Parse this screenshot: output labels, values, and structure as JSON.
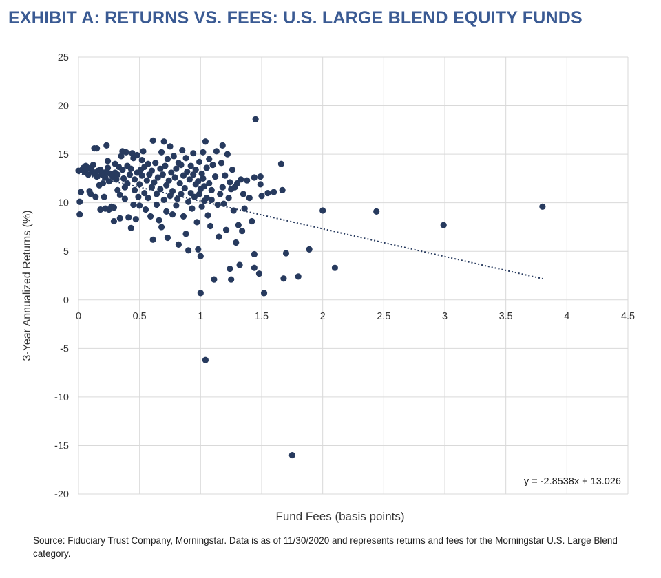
{
  "title": "EXHIBIT A: RETURNS VS. FEES:  U.S. LARGE BLEND EQUITY FUNDS",
  "source": "Source: Fiduciary Trust Company, Morningstar.  Data is as of 11/30/2020 and represents returns and fees for the Morningstar U.S. Large Blend category.",
  "colors": {
    "point": "#273a5e",
    "grid": "#d9d9d9",
    "trend": "#273a5e",
    "title": "#3a5a93"
  },
  "chart_data": {
    "type": "scatter",
    "title": "",
    "xlabel": "Fund Fees (basis points)",
    "ylabel": "3-Year Annualized Returns (%)",
    "xlim": [
      0,
      4.5
    ],
    "ylim": [
      -20,
      25
    ],
    "x_ticks": [
      0,
      0.5,
      1,
      1.5,
      2,
      2.5,
      3,
      3.5,
      4,
      4.5
    ],
    "x_tick_labels": [
      "0",
      "0.5",
      "1",
      "1.5",
      "2",
      "2.5",
      "3",
      "3.5",
      "4",
      "4.5"
    ],
    "y_ticks": [
      25,
      20,
      15,
      10,
      5,
      0,
      -5,
      -10,
      -15,
      -20
    ],
    "y_tick_labels": [
      "25",
      "20",
      "15",
      "10",
      "5",
      "0",
      "-5",
      "-10",
      "-15",
      "-20"
    ],
    "grid": true,
    "trendline": {
      "slope": -2.8538,
      "intercept": 13.026,
      "x_range": [
        0,
        3.8
      ],
      "style": "dotted",
      "equation_label": "y = -2.8538x + 13.026"
    },
    "points": [
      [
        0.0,
        13.3
      ],
      [
        0.01,
        8.8
      ],
      [
        0.01,
        10.1
      ],
      [
        0.02,
        11.1
      ],
      [
        0.03,
        13.4
      ],
      [
        0.04,
        13.6
      ],
      [
        0.05,
        13.2
      ],
      [
        0.06,
        13.8
      ],
      [
        0.07,
        13.5
      ],
      [
        0.08,
        12.9
      ],
      [
        0.09,
        11.2
      ],
      [
        0.1,
        13.6
      ],
      [
        0.1,
        10.9
      ],
      [
        0.11,
        13.3
      ],
      [
        0.12,
        13.9
      ],
      [
        0.13,
        15.6
      ],
      [
        0.13,
        13.0
      ],
      [
        0.14,
        10.6
      ],
      [
        0.15,
        15.6
      ],
      [
        0.15,
        12.7
      ],
      [
        0.16,
        13.3
      ],
      [
        0.17,
        11.8
      ],
      [
        0.18,
        13.4
      ],
      [
        0.18,
        9.3
      ],
      [
        0.19,
        12.9
      ],
      [
        0.2,
        13.1
      ],
      [
        0.2,
        12.0
      ],
      [
        0.21,
        10.6
      ],
      [
        0.22,
        9.4
      ],
      [
        0.22,
        12.6
      ],
      [
        0.23,
        13.2
      ],
      [
        0.23,
        15.9
      ],
      [
        0.24,
        14.3
      ],
      [
        0.24,
        13.6
      ],
      [
        0.25,
        12.2
      ],
      [
        0.25,
        9.3
      ],
      [
        0.26,
        13.0
      ],
      [
        0.27,
        9.6
      ],
      [
        0.28,
        12.7
      ],
      [
        0.29,
        8.1
      ],
      [
        0.29,
        9.5
      ],
      [
        0.3,
        13.1
      ],
      [
        0.3,
        14.0
      ],
      [
        0.31,
        12.4
      ],
      [
        0.32,
        11.3
      ],
      [
        0.32,
        12.9
      ],
      [
        0.33,
        13.7
      ],
      [
        0.34,
        10.8
      ],
      [
        0.34,
        8.4
      ],
      [
        0.35,
        14.8
      ],
      [
        0.36,
        15.3
      ],
      [
        0.36,
        13.4
      ],
      [
        0.37,
        12.5
      ],
      [
        0.38,
        11.6
      ],
      [
        0.38,
        10.4
      ],
      [
        0.39,
        15.2
      ],
      [
        0.4,
        12.0
      ],
      [
        0.4,
        13.8
      ],
      [
        0.41,
        8.5
      ],
      [
        0.42,
        12.9
      ],
      [
        0.43,
        13.5
      ],
      [
        0.43,
        7.4
      ],
      [
        0.44,
        15.1
      ],
      [
        0.45,
        14.6
      ],
      [
        0.45,
        9.8
      ],
      [
        0.46,
        11.3
      ],
      [
        0.46,
        12.4
      ],
      [
        0.47,
        8.3
      ],
      [
        0.48,
        14.9
      ],
      [
        0.48,
        13.1
      ],
      [
        0.49,
        10.6
      ],
      [
        0.5,
        11.9
      ],
      [
        0.5,
        9.7
      ],
      [
        0.51,
        13.4
      ],
      [
        0.52,
        12.8
      ],
      [
        0.52,
        14.4
      ],
      [
        0.53,
        15.3
      ],
      [
        0.54,
        11.0
      ],
      [
        0.54,
        13.7
      ],
      [
        0.55,
        9.3
      ],
      [
        0.56,
        12.3
      ],
      [
        0.57,
        14.0
      ],
      [
        0.57,
        10.5
      ],
      [
        0.58,
        12.9
      ],
      [
        0.59,
        8.6
      ],
      [
        0.6,
        11.6
      ],
      [
        0.6,
        13.3
      ],
      [
        0.61,
        6.2
      ],
      [
        0.61,
        16.4
      ],
      [
        0.62,
        12.1
      ],
      [
        0.63,
        14.1
      ],
      [
        0.64,
        10.9
      ],
      [
        0.64,
        9.8
      ],
      [
        0.65,
        12.6
      ],
      [
        0.66,
        8.2
      ],
      [
        0.67,
        13.5
      ],
      [
        0.67,
        11.4
      ],
      [
        0.68,
        7.5
      ],
      [
        0.68,
        15.2
      ],
      [
        0.69,
        12.9
      ],
      [
        0.7,
        10.3
      ],
      [
        0.7,
        16.3
      ],
      [
        0.71,
        13.8
      ],
      [
        0.72,
        9.1
      ],
      [
        0.72,
        11.8
      ],
      [
        0.73,
        6.4
      ],
      [
        0.73,
        14.5
      ],
      [
        0.74,
        12.3
      ],
      [
        0.75,
        15.8
      ],
      [
        0.75,
        10.7
      ],
      [
        0.76,
        13.1
      ],
      [
        0.77,
        8.8
      ],
      [
        0.77,
        11.2
      ],
      [
        0.78,
        14.8
      ],
      [
        0.79,
        12.6
      ],
      [
        0.8,
        9.7
      ],
      [
        0.8,
        13.5
      ],
      [
        0.81,
        10.4
      ],
      [
        0.82,
        14.1
      ],
      [
        0.82,
        5.7
      ],
      [
        0.83,
        12.0
      ],
      [
        0.84,
        13.9
      ],
      [
        0.84,
        10.9
      ],
      [
        0.85,
        15.4
      ],
      [
        0.86,
        8.6
      ],
      [
        0.86,
        12.8
      ],
      [
        0.87,
        11.5
      ],
      [
        0.88,
        6.8
      ],
      [
        0.88,
        14.6
      ],
      [
        0.89,
        13.2
      ],
      [
        0.9,
        10.1
      ],
      [
        0.9,
        5.1
      ],
      [
        0.91,
        12.4
      ],
      [
        0.92,
        11.0
      ],
      [
        0.92,
        13.8
      ],
      [
        0.93,
        9.4
      ],
      [
        0.94,
        12.9
      ],
      [
        0.94,
        15.1
      ],
      [
        0.95,
        10.6
      ],
      [
        0.96,
        11.9
      ],
      [
        0.96,
        13.4
      ],
      [
        0.97,
        8.0
      ],
      [
        0.98,
        5.2
      ],
      [
        0.98,
        12.2
      ],
      [
        0.99,
        10.9
      ],
      [
        0.99,
        14.2
      ],
      [
        1.0,
        4.5
      ],
      [
        1.0,
        11.4
      ],
      [
        1.0,
        0.7
      ],
      [
        1.01,
        13.0
      ],
      [
        1.01,
        9.6
      ],
      [
        1.02,
        12.5
      ],
      [
        1.02,
        15.2
      ],
      [
        1.03,
        10.2
      ],
      [
        1.03,
        11.7
      ],
      [
        1.04,
        16.3
      ],
      [
        1.04,
        -6.2
      ],
      [
        1.05,
        13.6
      ],
      [
        1.05,
        10.5
      ],
      [
        1.06,
        8.7
      ],
      [
        1.07,
        14.5
      ],
      [
        1.07,
        12.0
      ],
      [
        1.08,
        7.6
      ],
      [
        1.09,
        11.3
      ],
      [
        1.09,
        10.3
      ],
      [
        1.1,
        13.9
      ],
      [
        1.11,
        2.1
      ],
      [
        1.12,
        12.7
      ],
      [
        1.13,
        15.3
      ],
      [
        1.14,
        9.8
      ],
      [
        1.15,
        6.5
      ],
      [
        1.16,
        10.9
      ],
      [
        1.17,
        14.1
      ],
      [
        1.18,
        15.9
      ],
      [
        1.18,
        11.6
      ],
      [
        1.19,
        9.9
      ],
      [
        1.2,
        12.8
      ],
      [
        1.21,
        7.2
      ],
      [
        1.22,
        15.0
      ],
      [
        1.23,
        10.5
      ],
      [
        1.24,
        12.1
      ],
      [
        1.24,
        3.2
      ],
      [
        1.25,
        2.1
      ],
      [
        1.25,
        11.4
      ],
      [
        1.26,
        13.4
      ],
      [
        1.27,
        9.2
      ],
      [
        1.28,
        11.6
      ],
      [
        1.29,
        5.9
      ],
      [
        1.3,
        12.0
      ],
      [
        1.31,
        7.7
      ],
      [
        1.32,
        3.6
      ],
      [
        1.33,
        12.4
      ],
      [
        1.34,
        7.1
      ],
      [
        1.35,
        10.9
      ],
      [
        1.36,
        9.4
      ],
      [
        1.38,
        12.3
      ],
      [
        1.4,
        10.5
      ],
      [
        1.42,
        8.1
      ],
      [
        1.44,
        12.6
      ],
      [
        1.44,
        4.7
      ],
      [
        1.44,
        3.3
      ],
      [
        1.45,
        18.6
      ],
      [
        1.48,
        2.7
      ],
      [
        1.49,
        12.7
      ],
      [
        1.49,
        11.9
      ],
      [
        1.5,
        10.7
      ],
      [
        1.52,
        0.7
      ],
      [
        1.55,
        11.0
      ],
      [
        1.6,
        11.1
      ],
      [
        1.66,
        14.0
      ],
      [
        1.67,
        11.3
      ],
      [
        1.68,
        2.2
      ],
      [
        1.7,
        4.8
      ],
      [
        1.75,
        -16.0
      ],
      [
        1.8,
        2.4
      ],
      [
        1.89,
        5.2
      ],
      [
        2.0,
        9.2
      ],
      [
        2.1,
        3.3
      ],
      [
        2.44,
        9.1
      ],
      [
        2.99,
        7.7
      ],
      [
        3.8,
        9.6
      ]
    ]
  }
}
